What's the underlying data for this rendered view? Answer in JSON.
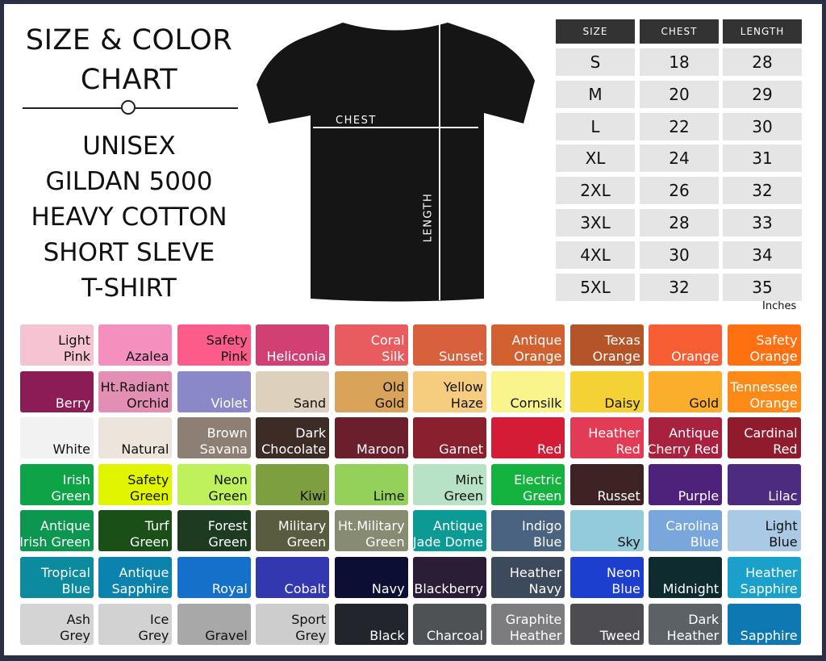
{
  "title": {
    "line1": "SIZE & COLOR",
    "line2": "CHART"
  },
  "subtitle": [
    "UNISEX",
    "GILDAN 5000",
    "HEAVY COTTON",
    "SHORT SLEVE",
    "T-SHIRT"
  ],
  "shirt": {
    "color": "#151515",
    "chest_label": "CHEST",
    "length_label": "LENGTH"
  },
  "size_table": {
    "headers": [
      "SIZE",
      "CHEST",
      "LENGTH"
    ],
    "rows": [
      [
        "S",
        "18",
        "28"
      ],
      [
        "M",
        "20",
        "29"
      ],
      [
        "L",
        "22",
        "30"
      ],
      [
        "XL",
        "24",
        "31"
      ],
      [
        "2XL",
        "26",
        "32"
      ],
      [
        "3XL",
        "28",
        "33"
      ],
      [
        "4XL",
        "30",
        "34"
      ],
      [
        "5XL",
        "32",
        "35"
      ]
    ],
    "unit": "Inches"
  },
  "colors": [
    [
      {
        "n": [
          "Light",
          "Pink"
        ],
        "bg": "#f6c3d3",
        "fg": "#111"
      },
      {
        "n": [
          "Azalea"
        ],
        "bg": "#f58fbe",
        "fg": "#111"
      },
      {
        "n": [
          "Safety",
          "Pink"
        ],
        "bg": "#fb5c8a",
        "fg": "#111"
      },
      {
        "n": [
          "Heliconia"
        ],
        "bg": "#d23f72",
        "fg": "#fff"
      },
      {
        "n": [
          "Coral",
          "Silk"
        ],
        "bg": "#e85c5f",
        "fg": "#fff"
      },
      {
        "n": [
          "Sunset"
        ],
        "bg": "#d8603c",
        "fg": "#fff"
      },
      {
        "n": [
          "Antique",
          "Orange"
        ],
        "bg": "#d3612f",
        "fg": "#fff"
      },
      {
        "n": [
          "Texas",
          "Orange"
        ],
        "bg": "#b55428",
        "fg": "#fff"
      },
      {
        "n": [
          "Orange"
        ],
        "bg": "#f85e34",
        "fg": "#fff"
      },
      {
        "n": [
          "Safety",
          "Orange"
        ],
        "bg": "#fe7010",
        "fg": "#fff"
      }
    ],
    [
      {
        "n": [
          "Berry"
        ],
        "bg": "#8c1c55",
        "fg": "#fff"
      },
      {
        "n": [
          "Ht.Radiant",
          "Orchid"
        ],
        "bg": "#e28fb3",
        "fg": "#111"
      },
      {
        "n": [
          "Violet"
        ],
        "bg": "#8a88c6",
        "fg": "#fff"
      },
      {
        "n": [
          "Sand"
        ],
        "bg": "#ddd0bd",
        "fg": "#111"
      },
      {
        "n": [
          "Old",
          "Gold"
        ],
        "bg": "#d9a35a",
        "fg": "#111"
      },
      {
        "n": [
          "Yellow",
          "Haze"
        ],
        "bg": "#f6cd7e",
        "fg": "#111"
      },
      {
        "n": [
          "Cornsilk"
        ],
        "bg": "#f9f48c",
        "fg": "#111"
      },
      {
        "n": [
          "Daisy"
        ],
        "bg": "#f4d236",
        "fg": "#111"
      },
      {
        "n": [
          "Gold"
        ],
        "bg": "#fbae2b",
        "fg": "#111"
      },
      {
        "n": [
          "Tennessee",
          "Orange"
        ],
        "bg": "#fd8a17",
        "fg": "#fff"
      }
    ],
    [
      {
        "n": [
          "White"
        ],
        "bg": "#f2f2f2",
        "fg": "#111"
      },
      {
        "n": [
          "Natural"
        ],
        "bg": "#ece5db",
        "fg": "#111"
      },
      {
        "n": [
          "Brown",
          "Savana"
        ],
        "bg": "#8d7f73",
        "fg": "#fff"
      },
      {
        "n": [
          "Dark",
          "Chocolate"
        ],
        "bg": "#3d2b26",
        "fg": "#fff"
      },
      {
        "n": [
          "Maroon"
        ],
        "bg": "#6b1f2c",
        "fg": "#fff"
      },
      {
        "n": [
          "Garnet"
        ],
        "bg": "#8a1f2d",
        "fg": "#fff"
      },
      {
        "n": [
          "Red"
        ],
        "bg": "#d41c37",
        "fg": "#fff"
      },
      {
        "n": [
          "Heather",
          "Red"
        ],
        "bg": "#e23b56",
        "fg": "#fff"
      },
      {
        "n": [
          "Antique",
          "Cherry Red"
        ],
        "bg": "#a8223f",
        "fg": "#fff"
      },
      {
        "n": [
          "Cardinal",
          "Red"
        ],
        "bg": "#901b2c",
        "fg": "#fff"
      }
    ],
    [
      {
        "n": [
          "Irish",
          "Green"
        ],
        "bg": "#0ca446",
        "fg": "#fff"
      },
      {
        "n": [
          "Safety",
          "Green"
        ],
        "bg": "#e1f500",
        "fg": "#111"
      },
      {
        "n": [
          "Neon",
          "Green"
        ],
        "bg": "#bef15c",
        "fg": "#111"
      },
      {
        "n": [
          "Kiwi"
        ],
        "bg": "#7e9f3f",
        "fg": "#111"
      },
      {
        "n": [
          "Lime"
        ],
        "bg": "#93d15a",
        "fg": "#111"
      },
      {
        "n": [
          "Mint",
          "Green"
        ],
        "bg": "#b8e2c6",
        "fg": "#111"
      },
      {
        "n": [
          "Electric",
          "Green"
        ],
        "bg": "#14b23e",
        "fg": "#fff"
      },
      {
        "n": [
          "Russet"
        ],
        "bg": "#3e2324",
        "fg": "#fff"
      },
      {
        "n": [
          "Purple"
        ],
        "bg": "#4e217a",
        "fg": "#fff"
      },
      {
        "n": [
          "Lilac"
        ],
        "bg": "#4c2b80",
        "fg": "#fff"
      }
    ],
    [
      {
        "n": [
          "Antique",
          "Irish Green"
        ],
        "bg": "#0d9650",
        "fg": "#fff"
      },
      {
        "n": [
          "Turf",
          "Green"
        ],
        "bg": "#1a5018",
        "fg": "#fff"
      },
      {
        "n": [
          "Forest",
          "Green"
        ],
        "bg": "#1c3b21",
        "fg": "#fff"
      },
      {
        "n": [
          "Military",
          "Green"
        ],
        "bg": "#5a5c40",
        "fg": "#fff"
      },
      {
        "n": [
          "Ht.Military",
          "Green"
        ],
        "bg": "#878b72",
        "fg": "#fff"
      },
      {
        "n": [
          "Antique",
          "Jade Dome"
        ],
        "bg": "#0c9a95",
        "fg": "#fff"
      },
      {
        "n": [
          "Indigo",
          "Blue"
        ],
        "bg": "#4a6381",
        "fg": "#fff"
      },
      {
        "n": [
          "Sky"
        ],
        "bg": "#93cbdc",
        "fg": "#111"
      },
      {
        "n": [
          "Carolina",
          "Blue"
        ],
        "bg": "#7aa7db",
        "fg": "#fff"
      },
      {
        "n": [
          "Light",
          "Blue"
        ],
        "bg": "#a9c9e5",
        "fg": "#111"
      }
    ],
    [
      {
        "n": [
          "Tropical",
          "Blue"
        ],
        "bg": "#0c8a9e",
        "fg": "#fff"
      },
      {
        "n": [
          "Antique",
          "Sapphire"
        ],
        "bg": "#0c83ae",
        "fg": "#fff"
      },
      {
        "n": [
          "Royal"
        ],
        "bg": "#1470c9",
        "fg": "#fff"
      },
      {
        "n": [
          "Cobalt"
        ],
        "bg": "#3438b0",
        "fg": "#fff"
      },
      {
        "n": [
          "Navy"
        ],
        "bg": "#0c0f33",
        "fg": "#fff"
      },
      {
        "n": [
          "Blackberry"
        ],
        "bg": "#2b1d35",
        "fg": "#fff"
      },
      {
        "n": [
          "Heather",
          "Navy"
        ],
        "bg": "#3c4a5c",
        "fg": "#fff"
      },
      {
        "n": [
          "Neon",
          "Blue"
        ],
        "bg": "#1c3fd0",
        "fg": "#fff"
      },
      {
        "n": [
          "Midnight"
        ],
        "bg": "#0e2b30",
        "fg": "#fff"
      },
      {
        "n": [
          "Heather",
          "Sapphire"
        ],
        "bg": "#19a1cb",
        "fg": "#fff"
      }
    ],
    [
      {
        "n": [
          "Ash",
          "Grey"
        ],
        "bg": "#d4d4d4",
        "fg": "#111"
      },
      {
        "n": [
          "Ice",
          "Grey"
        ],
        "bg": "#d2d2d2",
        "fg": "#111"
      },
      {
        "n": [
          "Gravel"
        ],
        "bg": "#a8a8a8",
        "fg": "#111"
      },
      {
        "n": [
          "Sport",
          "Grey"
        ],
        "bg": "#cdcdcd",
        "fg": "#111"
      },
      {
        "n": [
          "Black"
        ],
        "bg": "#22252b",
        "fg": "#fff"
      },
      {
        "n": [
          "Charcoal"
        ],
        "bg": "#4f5255",
        "fg": "#fff"
      },
      {
        "n": [
          "Graphite",
          "Heather"
        ],
        "bg": "#7c7c7e",
        "fg": "#fff"
      },
      {
        "n": [
          "Tweed"
        ],
        "bg": "#4d4c51",
        "fg": "#fff"
      },
      {
        "n": [
          "Dark",
          "Heather"
        ],
        "bg": "#5c6166",
        "fg": "#fff"
      },
      {
        "n": [
          "Sapphire"
        ],
        "bg": "#0e78b2",
        "fg": "#fff"
      }
    ]
  ]
}
